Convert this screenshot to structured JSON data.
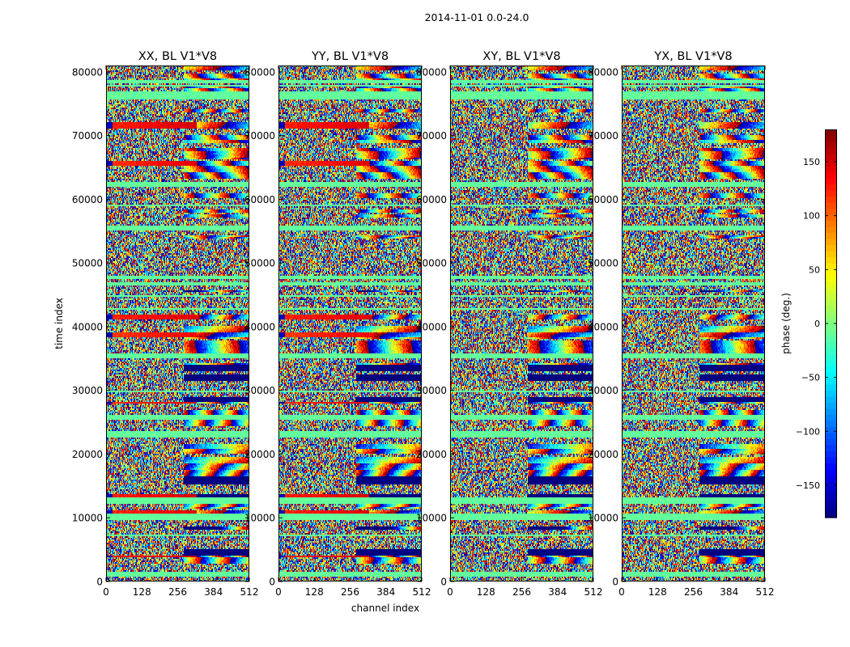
{
  "chart_data": {
    "type": "heatmap",
    "suptitle": "2014-11-01 0.0-24.0",
    "xlabel": "channel index",
    "ylabel": "time index",
    "xlim": [
      0,
      512
    ],
    "ylim": [
      0,
      81000
    ],
    "x_ticks": [
      0,
      128,
      256,
      384,
      512
    ],
    "y_ticks": [
      0,
      10000,
      20000,
      30000,
      40000,
      50000,
      60000,
      70000,
      80000
    ],
    "panels": [
      {
        "title": "XX, BL V1*V8",
        "pol": "XX"
      },
      {
        "title": "YY, BL V1*V8",
        "pol": "YY"
      },
      {
        "title": "XY, BL V1*V8",
        "pol": "XY"
      },
      {
        "title": "YX, BL V1*V8",
        "pol": "YX"
      }
    ],
    "colorbar": {
      "label": "phase (deg.)",
      "range": [
        -180,
        180
      ],
      "ticks": [
        -150,
        -100,
        -50,
        0,
        50,
        100,
        150
      ],
      "colormap": "jet"
    }
  }
}
